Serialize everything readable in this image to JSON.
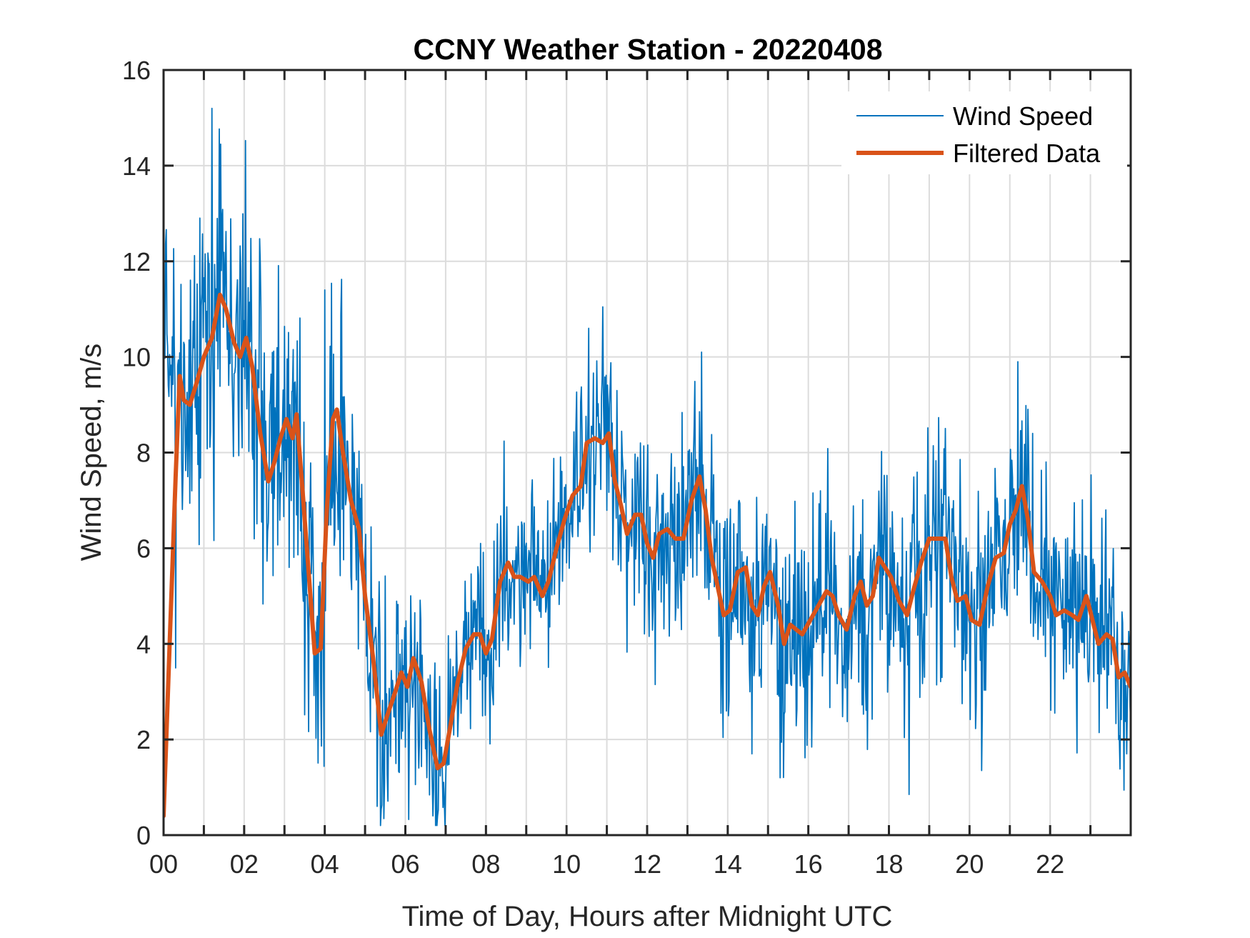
{
  "chart_data": {
    "type": "line",
    "title": "CCNY Weather Station - 20220408",
    "xlabel": "Time of Day, Hours after Midnight UTC",
    "ylabel": "Wind Speed, m/s",
    "xlim": [
      0,
      24
    ],
    "ylim": [
      0,
      16
    ],
    "grid": true,
    "legend_position": "top-right",
    "x_ticks": [
      0,
      1,
      2,
      3,
      4,
      5,
      6,
      7,
      8,
      9,
      10,
      11,
      12,
      13,
      14,
      15,
      16,
      17,
      18,
      19,
      20,
      21,
      22,
      23
    ],
    "x_tick_labels": [
      {
        "value": 0,
        "label": "00"
      },
      {
        "value": 2,
        "label": "02"
      },
      {
        "value": 4,
        "label": "04"
      },
      {
        "value": 6,
        "label": "06"
      },
      {
        "value": 8,
        "label": "08"
      },
      {
        "value": 10,
        "label": "10"
      },
      {
        "value": 12,
        "label": "12"
      },
      {
        "value": 14,
        "label": "14"
      },
      {
        "value": 16,
        "label": "16"
      },
      {
        "value": 18,
        "label": "18"
      },
      {
        "value": 20,
        "label": "20"
      },
      {
        "value": 22,
        "label": "22"
      }
    ],
    "y_tick_labels": [
      {
        "value": 0,
        "label": "0"
      },
      {
        "value": 2,
        "label": "2"
      },
      {
        "value": 4,
        "label": "4"
      },
      {
        "value": 6,
        "label": "6"
      },
      {
        "value": 8,
        "label": "8"
      },
      {
        "value": 10,
        "label": "10"
      },
      {
        "value": 12,
        "label": "12"
      },
      {
        "value": 14,
        "label": "14"
      },
      {
        "value": 16,
        "label": "16"
      }
    ],
    "series": [
      {
        "name": "Wind Speed",
        "color": "#0072BD",
        "style": "thin",
        "description": "1-minute raw samples, noisy around filtered curve",
        "noise_envelope": [
          {
            "x": 0.0,
            "amp": 2.2
          },
          {
            "x": 3.5,
            "amp": 2.4
          },
          {
            "x": 4.5,
            "amp": 1.6
          },
          {
            "x": 8.0,
            "amp": 1.2
          },
          {
            "x": 12.0,
            "amp": 1.6
          },
          {
            "x": 24.0,
            "amp": 1.6
          }
        ],
        "notable_points": [
          {
            "x": 1.2,
            "y": 15.2
          },
          {
            "x": 4.0,
            "y": 11.4
          },
          {
            "x": 5.3,
            "y": 0.6
          },
          {
            "x": 6.8,
            "y": 0.4
          },
          {
            "x": 10.55,
            "y": 10.6
          },
          {
            "x": 13.35,
            "y": 10.1
          },
          {
            "x": 14.6,
            "y": 1.7
          },
          {
            "x": 15.3,
            "y": 1.2
          },
          {
            "x": 18.5,
            "y": 0.85
          },
          {
            "x": 20.3,
            "y": 1.35
          },
          {
            "x": 21.2,
            "y": 9.9
          },
          {
            "x": 23.9,
            "y": 1.7
          }
        ]
      },
      {
        "name": "Filtered Data",
        "color": "#D95319",
        "style": "thick",
        "x": [
          0.0,
          0.15,
          0.3,
          0.4,
          0.5,
          0.65,
          0.8,
          1.0,
          1.2,
          1.4,
          1.55,
          1.75,
          1.9,
          2.05,
          2.2,
          2.4,
          2.6,
          2.75,
          2.9,
          3.05,
          3.2,
          3.3,
          3.45,
          3.6,
          3.75,
          3.9,
          4.05,
          4.2,
          4.3,
          4.45,
          4.65,
          4.85,
          5.0,
          5.2,
          5.4,
          5.55,
          5.75,
          5.9,
          6.05,
          6.2,
          6.4,
          6.6,
          6.8,
          6.95,
          7.1,
          7.3,
          7.5,
          7.7,
          7.85,
          8.0,
          8.15,
          8.35,
          8.55,
          8.7,
          8.85,
          9.05,
          9.2,
          9.4,
          9.55,
          9.75,
          9.95,
          10.15,
          10.35,
          10.5,
          10.7,
          10.9,
          11.05,
          11.2,
          11.35,
          11.5,
          11.7,
          11.85,
          12.0,
          12.15,
          12.3,
          12.5,
          12.7,
          12.9,
          13.1,
          13.3,
          13.45,
          13.6,
          13.75,
          13.9,
          14.05,
          14.25,
          14.45,
          14.6,
          14.75,
          14.9,
          15.05,
          15.25,
          15.4,
          15.55,
          15.7,
          15.85,
          16.05,
          16.25,
          16.45,
          16.6,
          16.75,
          16.95,
          17.15,
          17.3,
          17.45,
          17.6,
          17.75,
          17.9,
          18.05,
          18.25,
          18.45,
          18.6,
          18.8,
          19.0,
          19.2,
          19.4,
          19.55,
          19.7,
          19.9,
          20.05,
          20.25,
          20.45,
          20.65,
          20.85,
          21.0,
          21.15,
          21.3,
          21.45,
          21.6,
          21.8,
          22.0,
          22.15,
          22.35,
          22.55,
          22.7,
          22.9,
          23.05,
          23.2,
          23.4,
          23.55,
          23.7,
          23.85,
          24.0
        ],
        "y": [
          0.4,
          4.0,
          7.5,
          9.6,
          9.1,
          9.0,
          9.4,
          10.0,
          10.4,
          11.3,
          11.0,
          10.3,
          10.0,
          10.4,
          9.8,
          8.4,
          7.4,
          7.8,
          8.3,
          8.7,
          8.3,
          8.8,
          7.2,
          5.5,
          3.8,
          3.9,
          6.8,
          8.7,
          8.9,
          8.0,
          7.0,
          6.4,
          5.0,
          3.7,
          2.1,
          2.5,
          3.0,
          3.4,
          3.1,
          3.7,
          3.2,
          2.2,
          1.4,
          1.5,
          2.2,
          3.2,
          3.9,
          4.2,
          4.2,
          3.8,
          4.1,
          5.3,
          5.7,
          5.4,
          5.4,
          5.3,
          5.4,
          5.0,
          5.3,
          6.0,
          6.6,
          7.1,
          7.3,
          8.2,
          8.3,
          8.2,
          8.4,
          7.4,
          6.9,
          6.3,
          6.7,
          6.7,
          6.1,
          5.8,
          6.3,
          6.4,
          6.2,
          6.2,
          7.0,
          7.5,
          6.8,
          5.8,
          5.2,
          4.6,
          4.7,
          5.5,
          5.6,
          4.8,
          4.6,
          5.2,
          5.5,
          4.8,
          4.0,
          4.4,
          4.3,
          4.2,
          4.5,
          4.8,
          5.1,
          5.0,
          4.6,
          4.3,
          5.0,
          5.3,
          4.8,
          5.0,
          5.8,
          5.6,
          5.4,
          4.9,
          4.6,
          5.1,
          5.7,
          6.2,
          6.2,
          6.2,
          5.4,
          4.9,
          5.0,
          4.5,
          4.4,
          5.2,
          5.8,
          5.9,
          6.5,
          6.8,
          7.3,
          6.6,
          5.5,
          5.3,
          5.0,
          4.6,
          4.7,
          4.6,
          4.5,
          5.0,
          4.5,
          4.0,
          4.2,
          4.1,
          3.3,
          3.4,
          3.1
        ]
      }
    ]
  },
  "legend": {
    "items": [
      {
        "label": "Wind Speed",
        "color": "#0072BD"
      },
      {
        "label": "Filtered Data",
        "color": "#D95319"
      }
    ]
  }
}
